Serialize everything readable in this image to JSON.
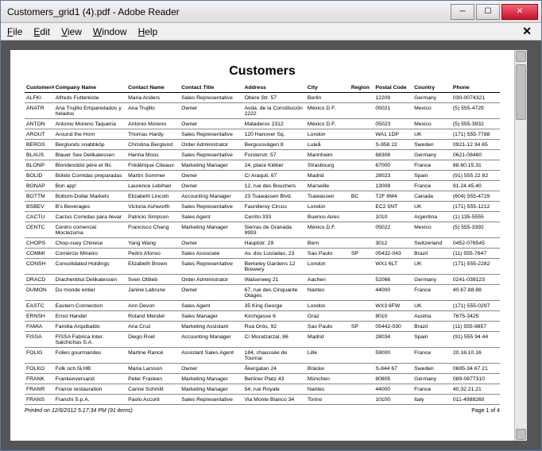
{
  "window": {
    "title": "Customers_grid1 (4).pdf - Adobe Reader",
    "min": "─",
    "max": "☐",
    "close": "✕"
  },
  "menu": {
    "items": [
      "File",
      "Edit",
      "View",
      "Window",
      "Help"
    ],
    "x": "✕"
  },
  "doc": {
    "title": "Customers",
    "columns": [
      "Customer#",
      "Company Name",
      "Contact Name",
      "Contact Title",
      "Address",
      "City",
      "Region",
      "Postal Code",
      "Country",
      "Phone"
    ],
    "rows": [
      [
        "ALFKI",
        "Alfreds Futterkiste",
        "Maria Anders",
        "Sales Representative",
        "Obere Str. 57",
        "Berlin",
        "",
        "12209",
        "Germany",
        "030-0074321"
      ],
      [
        "ANATR",
        "Ana Trujillo Emparedados y helados",
        "Ana Trujillo",
        "Owner",
        "Avda. de la Constitución 2222",
        "México D.F.",
        "",
        "05021",
        "Mexico",
        "(5) 555-4729"
      ],
      [
        "ANTON",
        "Antonio Moreno Taquería",
        "Antonio Moreno",
        "Owner",
        "Mataderos 2312",
        "México D.F.",
        "",
        "05023",
        "Mexico",
        "(5) 555-3932"
      ],
      [
        "AROUT",
        "Around the Horn",
        "Thomas Hardy",
        "Sales Representative",
        "120 Hanover Sq.",
        "London",
        "",
        "WA1 1DP",
        "UK",
        "(171) 555-7788"
      ],
      [
        "BERGS",
        "Berglunds snabbköp",
        "Christina Berglund",
        "Order Administrator",
        "Berguvsvägen 8",
        "Luleå",
        "",
        "S-958 22",
        "Sweden",
        "0921-12 34 65"
      ],
      [
        "BLAUS",
        "Blauer See Delikatessen",
        "Hanna Moos",
        "Sales Representative",
        "Forsterstr. 57",
        "Mannheim",
        "",
        "68306",
        "Germany",
        "0621-08460"
      ],
      [
        "BLONP",
        "Blondesddsl père et fils",
        "Frédérique Citeaux",
        "Marketing Manager",
        "24, place Kléber",
        "Strasbourg",
        "",
        "67000",
        "France",
        "88.60.15.31"
      ],
      [
        "BOLID",
        "Bólido Comidas preparadas",
        "Martín Sommer",
        "Owner",
        "C/ Araquil, 67",
        "Madrid",
        "",
        "28023",
        "Spain",
        "(91) 555 22 82"
      ],
      [
        "BONAP",
        "Bon app'",
        "Laurence Lebihan",
        "Owner",
        "12, rue des Bouchers",
        "Marseille",
        "",
        "13008",
        "France",
        "91.24.45.40"
      ],
      [
        "BOTTM",
        "Bottom-Dollar Markets",
        "Elizabeth Lincoln",
        "Accounting Manager",
        "23 Tsawassen Blvd.",
        "Tsawassen",
        "BC",
        "T2F 8M4",
        "Canada",
        "(604) 555-4729"
      ],
      [
        "BSBEV",
        "B's Beverages",
        "Victoria Ashworth",
        "Sales Representative",
        "Fauntleroy Circus",
        "London",
        "",
        "EC2 5NT",
        "UK",
        "(171) 555-1212"
      ],
      [
        "CACTU",
        "Cactus Comidas para llevar",
        "Patricio Simpson",
        "Sales Agent",
        "Cerrito 333",
        "Buenos Aires",
        "",
        "1010",
        "Argentina",
        "(1) 135-5555"
      ],
      [
        "CENTC",
        "Centro comercial Moctezuma",
        "Francisco Chang",
        "Marketing Manager",
        "Sierras de Granada 9993",
        "México D.F.",
        "",
        "05022",
        "Mexico",
        "(5) 555-3392"
      ],
      [
        "CHOPS",
        "Chop-suey Chinese",
        "Yang Wang",
        "Owner",
        "Hauptstr. 29",
        "Bern",
        "",
        "3012",
        "Switzerland",
        "0452-076545"
      ],
      [
        "COMMI",
        "Comércio Mineiro",
        "Pedro Afonso",
        "Sales Associate",
        "Av. dos Lusíadas, 23",
        "Sao Paulo",
        "SP",
        "05432-043",
        "Brazil",
        "(11) 555-7647"
      ],
      [
        "CONSH",
        "Consolidated Holdings",
        "Elizabeth Brown",
        "Sales Representative",
        "Berkeley Gardens 12 Brewery",
        "London",
        "",
        "WX1 6LT",
        "UK",
        "(171) 555-2282"
      ],
      [
        "DRACD",
        "Drachenblut Delikatessen",
        "Sven Ottlieb",
        "Order Administrator",
        "Walserweg 21",
        "Aachen",
        "",
        "52066",
        "Germany",
        "0241-039123"
      ],
      [
        "DUMON",
        "Du monde entier",
        "Janine Labrune",
        "Owner",
        "67, rue des Cinquante Otages",
        "Nantes",
        "",
        "44000",
        "France",
        "40.67.88.88"
      ],
      [
        "EASTC",
        "Eastern Connection",
        "Ann Devon",
        "Sales Agent",
        "35 King George",
        "London",
        "",
        "WX3 6FW",
        "UK",
        "(171) 555-0297"
      ],
      [
        "ERNSH",
        "Ernst Handel",
        "Roland Mendel",
        "Sales Manager",
        "Kirchgasse 6",
        "Graz",
        "",
        "8010",
        "Austria",
        "7675-3425"
      ],
      [
        "FAMIA",
        "Familia Arquibaldo",
        "Aria Cruz",
        "Marketing Assistant",
        "Rua Orós, 92",
        "Sao Paulo",
        "SP",
        "05442-030",
        "Brazil",
        "(11) 555-9857"
      ],
      [
        "FISSA",
        "FISSA Fabrica Inter. Salchichas S.A.",
        "Diego Roel",
        "Accounting Manager",
        "C/ Moralzarzal, 86",
        "Madrid",
        "",
        "28034",
        "Spain",
        "(91) 555 94 44"
      ],
      [
        "FOLIG",
        "Folies gourmandes",
        "Martine Rancé",
        "Assistant Sales Agent",
        "184, chaussée de Tournai",
        "Lille",
        "",
        "59000",
        "France",
        "20.16.10.16"
      ],
      [
        "FOLKO",
        "Folk och fä HB",
        "Maria Larsson",
        "Owner",
        "Åkergatan 24",
        "Bräcke",
        "",
        "S-844 67",
        "Sweden",
        "0695-34 67 21"
      ],
      [
        "FRANK",
        "Frankenversand",
        "Peter Franken",
        "Marketing Manager",
        "Berliner Platz 43",
        "München",
        "",
        "80805",
        "Germany",
        "089-0877310"
      ],
      [
        "FRANR",
        "France restauration",
        "Carine Schmitt",
        "Marketing Manager",
        "54, rue Royale",
        "Nantes",
        "",
        "44000",
        "France",
        "40.32.21.21"
      ],
      [
        "FRANS",
        "Franchi S.p.A.",
        "Paolo Accorti",
        "Sales Representative",
        "Via Monte Bianco 34",
        "Torino",
        "",
        "10100",
        "Italy",
        "011-4988260"
      ]
    ],
    "footer_left": "Printed on 12/6/2012 5:17:34 PM (91 items)",
    "footer_right": "Page 1 of 4"
  },
  "colors": {
    "viewer_bg": "#555555",
    "page_bg": "#ffffff",
    "border": "#888888"
  }
}
